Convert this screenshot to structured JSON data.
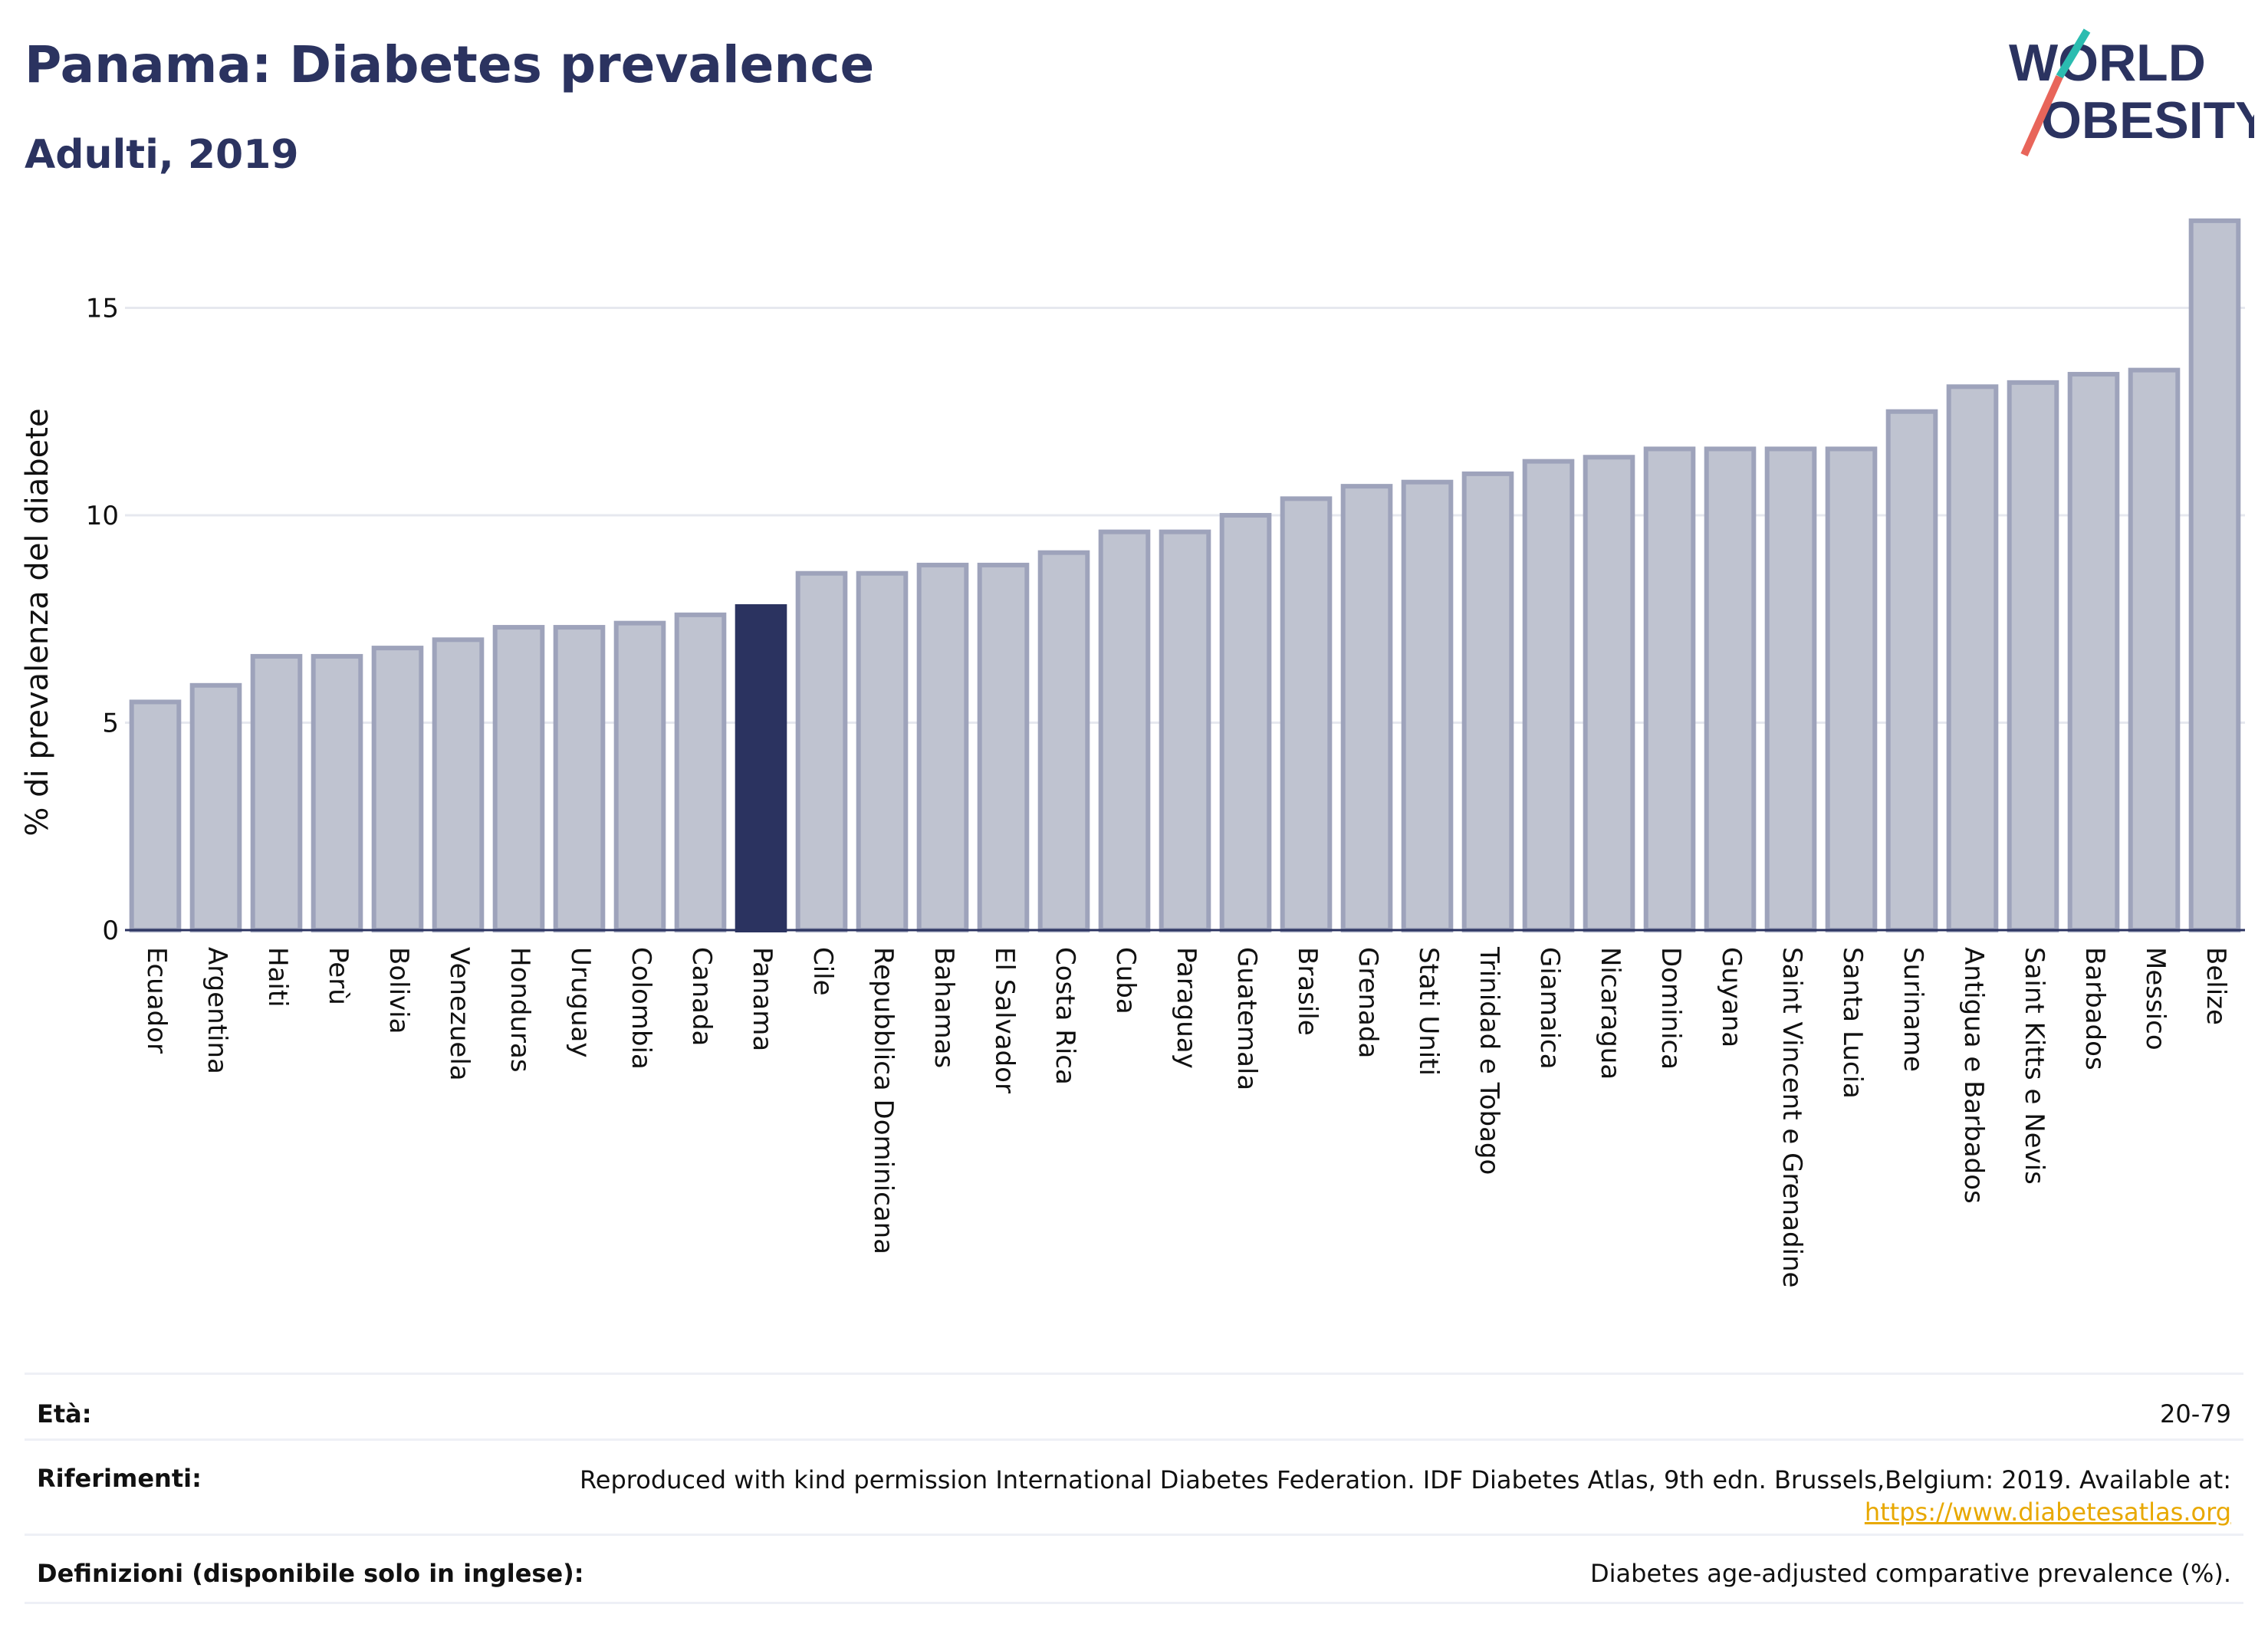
{
  "title": "Panama: Diabetes prevalence",
  "subtitle": "Adulti, 2019",
  "logo": {
    "line1": "WORLD",
    "line2": "OBESITY",
    "accent_teal": "#2bbcb0",
    "accent_red": "#e8655a"
  },
  "colors": {
    "bar": "#bfc3d0",
    "bar_stroke": "#9ea3bb",
    "highlight": "#2b3360",
    "grid": "#e6e8ef",
    "axis": "#2b3360"
  },
  "chart_data": {
    "type": "bar",
    "ylabel": "% di prevalenza del diabete",
    "ylim": [
      0,
      17.8
    ],
    "yticks": [
      0,
      5,
      10,
      15
    ],
    "highlight": "Panama",
    "categories": [
      "Ecuador",
      "Argentina",
      "Haiti",
      "Perù",
      "Bolivia",
      "Venezuela",
      "Honduras",
      "Uruguay",
      "Colombia",
      "Canada",
      "Panama",
      "Cile",
      "Repubblica Dominicana",
      "Bahamas",
      "El Salvador",
      "Costa Rica",
      "Cuba",
      "Paraguay",
      "Guatemala",
      "Brasile",
      "Grenada",
      "Stati Uniti",
      "Trinidad e Tobago",
      "Giamaica",
      "Nicaragua",
      "Dominica",
      "Guyana",
      "Saint Vincent e Grenadine",
      "Santa Lucia",
      "Suriname",
      "Antigua e Barbados",
      "Saint Kitts e Nevis",
      "Barbados",
      "Messico",
      "Belize"
    ],
    "values": [
      5.5,
      5.9,
      6.6,
      6.6,
      6.8,
      7.0,
      7.3,
      7.3,
      7.4,
      7.6,
      7.8,
      8.6,
      8.6,
      8.8,
      8.8,
      9.1,
      9.6,
      9.6,
      10.0,
      10.4,
      10.7,
      10.8,
      11.0,
      11.3,
      11.4,
      11.6,
      11.6,
      11.6,
      11.6,
      12.5,
      13.1,
      13.2,
      13.4,
      13.5,
      17.1
    ]
  },
  "meta": {
    "age_label": "Età:",
    "age_value": "20-79",
    "refs_label": "Riferimenti:",
    "refs_value": "Reproduced with kind permission International Diabetes Federation. IDF Diabetes Atlas, 9th edn. Brussels,Belgium: 2019. Available at:",
    "refs_link": "https://www.diabetesatlas.org",
    "defs_label": "Definizioni (disponibile solo in inglese):",
    "defs_value": "Diabetes age-adjusted comparative prevalence (%)."
  }
}
